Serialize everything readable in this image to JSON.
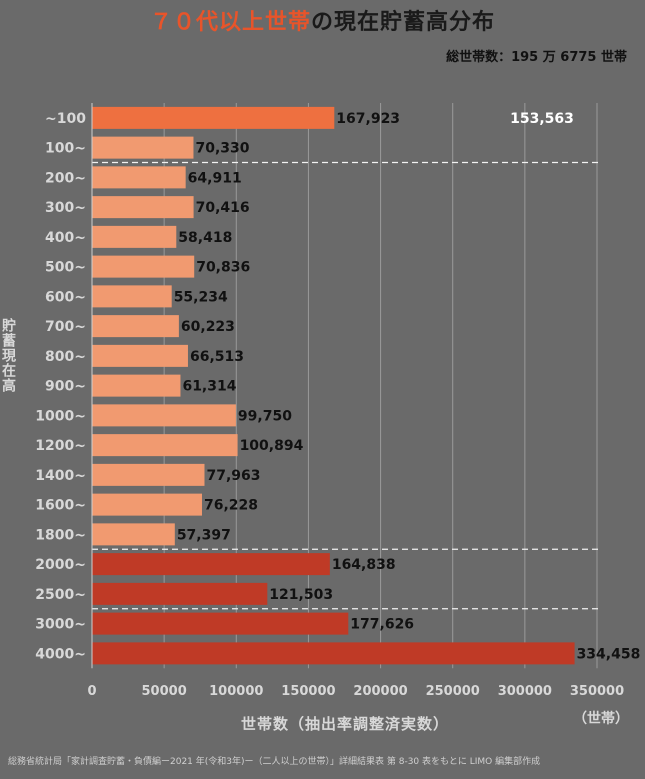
{
  "title": {
    "highlight": "７０代以上世帯",
    "rest": "の現在貯蓄高分布"
  },
  "total_households": "総世帯数：195 万 6775 世帯",
  "y_axis_label": "貯蓄現在高",
  "x_axis_label": "世帯数（抽出率調整済実数）",
  "x_unit": "（世帯）",
  "source": "総務省統計局「家計調査貯蓄・負債編ー2021 年(令和3年)ー（二人以上の世帯）」詳細結果表 第 8-30 表をもとに LIMO 編集部作成",
  "colors": {
    "top": "#ee7040",
    "mid": "#f19a70",
    "high": "#bf3a26",
    "grid": "#9a9a9a",
    "text": "#d8d8d8",
    "label": "#111111"
  },
  "chart_data": {
    "type": "bar",
    "orientation": "horizontal",
    "categories": [
      "~100",
      "100~",
      "200~",
      "300~",
      "400~",
      "500~",
      "600~",
      "700~",
      "800~",
      "900~",
      "1000~",
      "1200~",
      "1400~",
      "1600~",
      "1800~",
      "2000~",
      "2500~",
      "3000~",
      "4000~"
    ],
    "values": [
      167923,
      70330,
      64911,
      70416,
      58418,
      70836,
      55234,
      60223,
      66513,
      61314,
      99750,
      100894,
      77963,
      76228,
      57397,
      164838,
      121503,
      177626,
      334458
    ],
    "value_labels": [
      "167,923",
      "70,330",
      "64,911",
      "70,416",
      "58,418",
      "70,836",
      "55,234",
      "60,223",
      "66,513",
      "61,314",
      "99,750",
      "100,894",
      "77,963",
      "76,228",
      "57,397",
      "164,838",
      "121,503",
      "177,626",
      "334,458"
    ],
    "groups": [
      "top",
      "mid",
      "mid",
      "mid",
      "mid",
      "mid",
      "mid",
      "mid",
      "mid",
      "mid",
      "mid",
      "mid",
      "mid",
      "mid",
      "mid",
      "high",
      "high",
      "high",
      "high"
    ],
    "xlim": [
      0,
      350000
    ],
    "xticks": [
      0,
      50000,
      100000,
      150000,
      200000,
      250000,
      300000,
      350000
    ],
    "annotation": "153,563",
    "group_separators_after": [
      1,
      14,
      16
    ],
    "grid": true
  }
}
